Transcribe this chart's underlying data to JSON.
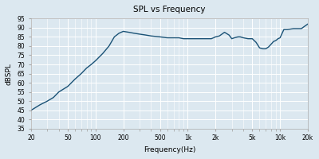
{
  "title": "SPL vs Frequency",
  "xlabel": "Frequency(Hz)",
  "ylabel": "dBSPL",
  "xlim": [
    20,
    20000
  ],
  "ylim": [
    35,
    95
  ],
  "yticks": [
    35,
    40,
    45,
    50,
    55,
    60,
    65,
    70,
    75,
    80,
    85,
    90,
    95
  ],
  "xtick_labels": [
    "20",
    "50",
    "100",
    "200",
    "500",
    "1k",
    "2k",
    "5k",
    "10k",
    "20k"
  ],
  "xtick_values": [
    20,
    50,
    100,
    200,
    500,
    1000,
    2000,
    5000,
    10000,
    20000
  ],
  "line_color": "#1a5276",
  "line_width": 1.0,
  "bg_color": "#dce8f0",
  "grid_color": "#ffffff",
  "fig_bg": "#dce8f0",
  "freqs": [
    20,
    25,
    30,
    35,
    40,
    50,
    60,
    70,
    80,
    90,
    100,
    120,
    140,
    160,
    180,
    200,
    230,
    260,
    300,
    350,
    400,
    500,
    600,
    700,
    800,
    900,
    1000,
    1100,
    1200,
    1400,
    1600,
    1800,
    2000,
    2200,
    2500,
    2800,
    3000,
    3200,
    3500,
    3700,
    4000,
    4500,
    5000,
    5500,
    6000,
    6500,
    7000,
    7500,
    8000,
    8500,
    9000,
    9500,
    10000,
    11000,
    12000,
    14000,
    17000,
    20000
  ],
  "spl": [
    45,
    48,
    50,
    52,
    55,
    58,
    62,
    65,
    68,
    70,
    72,
    76,
    80,
    85,
    87,
    88,
    87.5,
    87,
    86.5,
    86,
    85.5,
    85,
    84.5,
    84.5,
    84.5,
    84,
    84,
    84,
    84,
    84,
    84,
    84,
    85,
    85.5,
    87.5,
    86,
    84,
    84.5,
    85,
    85,
    84.5,
    84,
    84,
    82,
    79,
    78.5,
    78.5,
    79.5,
    81,
    82.5,
    83,
    84,
    84.5,
    89,
    89,
    89.5,
    89.5,
    92
  ]
}
